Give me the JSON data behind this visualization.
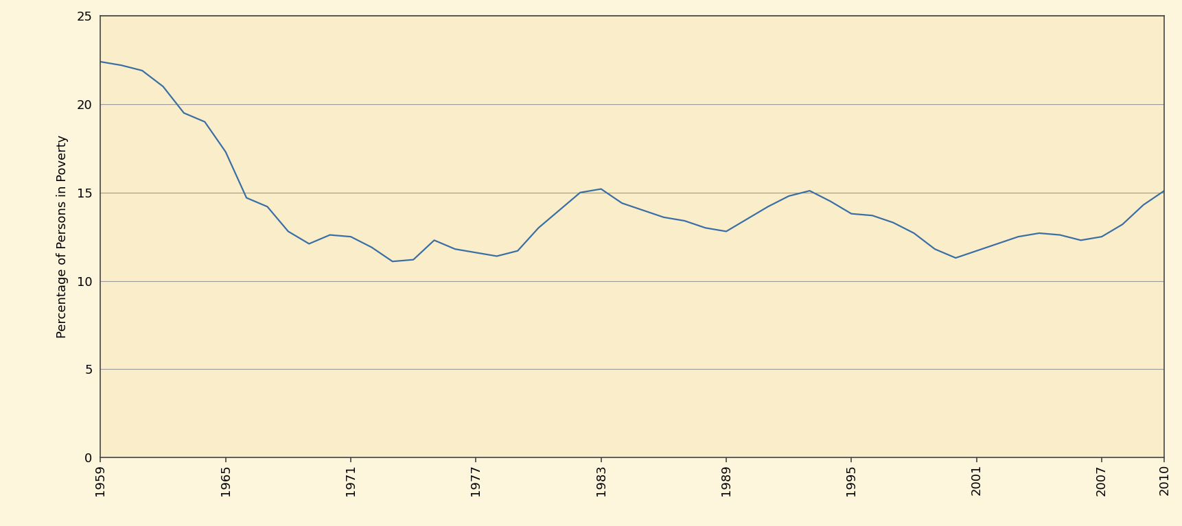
{
  "years": [
    1959,
    1960,
    1961,
    1962,
    1963,
    1964,
    1965,
    1966,
    1967,
    1968,
    1969,
    1970,
    1971,
    1972,
    1973,
    1974,
    1975,
    1976,
    1977,
    1978,
    1979,
    1980,
    1981,
    1982,
    1983,
    1984,
    1985,
    1986,
    1987,
    1988,
    1989,
    1990,
    1991,
    1992,
    1993,
    1994,
    1995,
    1996,
    1997,
    1998,
    1999,
    2000,
    2001,
    2002,
    2003,
    2004,
    2005,
    2006,
    2007,
    2008,
    2009,
    2010
  ],
  "values": [
    22.4,
    22.2,
    21.9,
    21.0,
    19.5,
    19.0,
    17.3,
    14.7,
    14.2,
    12.8,
    12.1,
    12.6,
    12.5,
    11.9,
    11.1,
    11.2,
    12.3,
    11.8,
    11.6,
    11.4,
    11.7,
    13.0,
    14.0,
    15.0,
    15.2,
    14.4,
    14.0,
    13.6,
    13.4,
    13.0,
    12.8,
    13.5,
    14.2,
    14.8,
    15.1,
    14.5,
    13.8,
    13.7,
    13.3,
    12.7,
    11.8,
    11.3,
    11.7,
    12.1,
    12.5,
    12.7,
    12.6,
    12.3,
    12.5,
    13.2,
    14.3,
    15.1
  ],
  "line_color": "#3a6ea5",
  "background_color": "#fdf5dc",
  "plot_bg_color": "#faeeca",
  "grid_color": "#999999",
  "spine_color": "#444444",
  "ylabel": "Percentage of Persons in Poverty",
  "ylim": [
    0,
    25
  ],
  "yticks": [
    0,
    5,
    10,
    15,
    20,
    25
  ],
  "xtick_years": [
    1959,
    1965,
    1971,
    1977,
    1983,
    1989,
    1995,
    2001,
    2007,
    2010
  ],
  "line_width": 1.6,
  "ylabel_fontsize": 13,
  "tick_fontsize": 13
}
